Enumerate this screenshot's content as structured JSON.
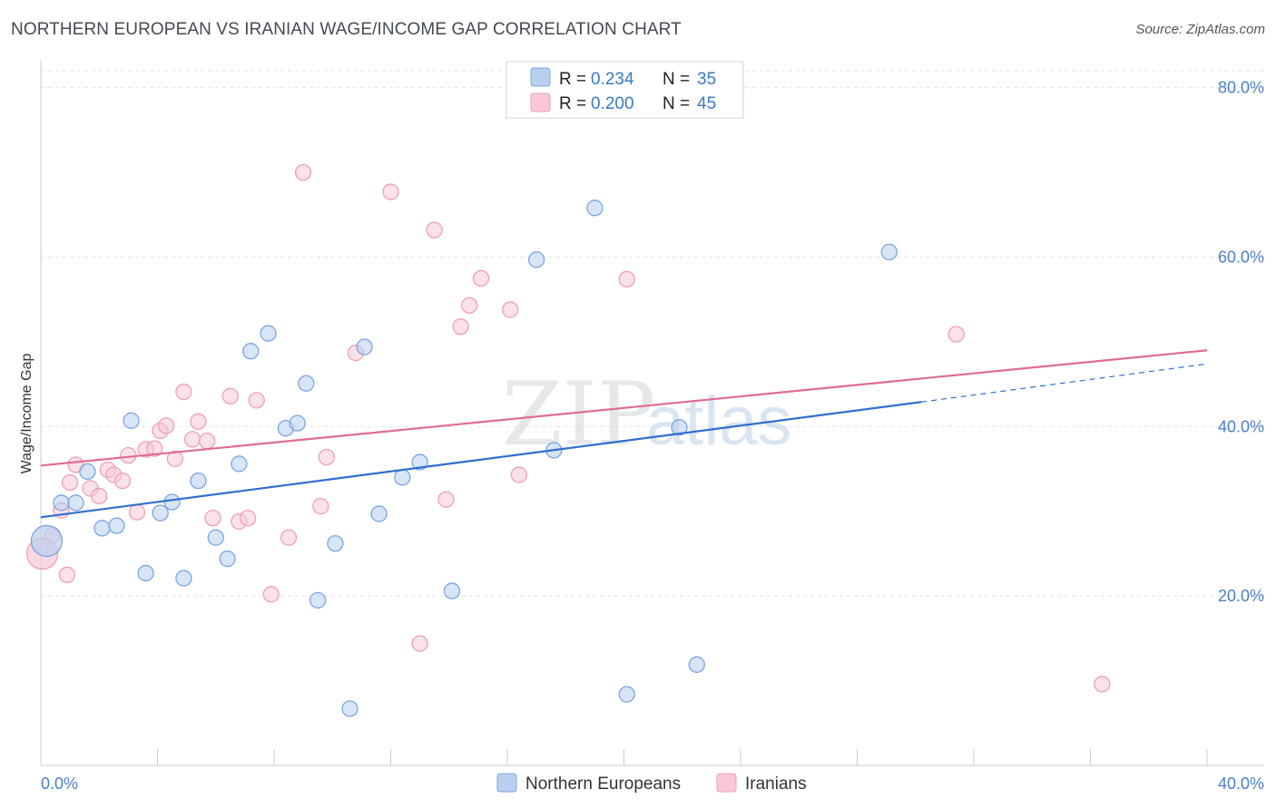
{
  "title": "NORTHERN EUROPEAN VS IRANIAN WAGE/INCOME GAP CORRELATION CHART",
  "source": "Source: ZipAtlas.com",
  "watermark": {
    "zip": "ZIP",
    "atlas": "atlas"
  },
  "legend_stats": [
    {
      "r_label": "R =",
      "r_value": "0.234",
      "n_label": "N =",
      "n_value": "35"
    },
    {
      "r_label": "R =",
      "r_value": "0.200",
      "n_label": "N =",
      "n_value": "45"
    }
  ],
  "chart_data": {
    "type": "scatter",
    "title": "NORTHERN EUROPEAN VS IRANIAN WAGE/INCOME GAP CORRELATION CHART",
    "xlabel": "",
    "ylabel": "Wage/Income Gap",
    "xlim": [
      0,
      40
    ],
    "ylim": [
      0,
      82
    ],
    "x_ticks": [
      {
        "value": 0,
        "label": "0.0%"
      },
      {
        "value": 40,
        "label": "40.0%"
      }
    ],
    "y_ticks": [
      {
        "value": 20,
        "label": "20.0%"
      },
      {
        "value": 40,
        "label": "40.0%"
      },
      {
        "value": 60,
        "label": "60.0%"
      },
      {
        "value": 80,
        "label": "80.0%"
      }
    ],
    "grid": true,
    "legend_position": "bottom-center",
    "series": [
      {
        "name": "Northern Europeans",
        "color": "#7aa6e0",
        "fill": "#b8d0f0",
        "trend_color": "#2f6fce",
        "trend": {
          "x0": 0,
          "y0": 29.3,
          "x1": 30.2,
          "y1": 42.9,
          "dash_x1": 40,
          "dash_y1": 47.4
        },
        "points": [
          {
            "x": 0.2,
            "y": 26.5,
            "big": true
          },
          {
            "x": 0.7,
            "y": 31.0
          },
          {
            "x": 1.2,
            "y": 31.0
          },
          {
            "x": 1.6,
            "y": 34.7
          },
          {
            "x": 2.1,
            "y": 28.0
          },
          {
            "x": 2.6,
            "y": 28.3
          },
          {
            "x": 3.1,
            "y": 40.7
          },
          {
            "x": 3.6,
            "y": 22.7
          },
          {
            "x": 4.1,
            "y": 29.8
          },
          {
            "x": 4.5,
            "y": 31.1
          },
          {
            "x": 4.9,
            "y": 22.1
          },
          {
            "x": 5.4,
            "y": 33.6
          },
          {
            "x": 6.0,
            "y": 26.9
          },
          {
            "x": 6.4,
            "y": 24.4
          },
          {
            "x": 6.8,
            "y": 35.6
          },
          {
            "x": 7.2,
            "y": 48.9
          },
          {
            "x": 7.8,
            "y": 51.0
          },
          {
            "x": 8.4,
            "y": 39.8
          },
          {
            "x": 8.8,
            "y": 40.4
          },
          {
            "x": 9.1,
            "y": 45.1
          },
          {
            "x": 9.5,
            "y": 19.5
          },
          {
            "x": 10.1,
            "y": 26.2
          },
          {
            "x": 10.6,
            "y": 6.7
          },
          {
            "x": 11.1,
            "y": 49.4
          },
          {
            "x": 11.6,
            "y": 29.7
          },
          {
            "x": 12.4,
            "y": 34.0
          },
          {
            "x": 13.0,
            "y": 35.8
          },
          {
            "x": 14.1,
            "y": 20.6
          },
          {
            "x": 17.0,
            "y": 59.7
          },
          {
            "x": 17.6,
            "y": 37.2
          },
          {
            "x": 19.0,
            "y": 65.8
          },
          {
            "x": 20.1,
            "y": 8.4
          },
          {
            "x": 21.9,
            "y": 39.9
          },
          {
            "x": 22.5,
            "y": 11.9
          },
          {
            "x": 29.1,
            "y": 60.6
          }
        ]
      },
      {
        "name": "Iranians",
        "color": "#ee9fb6",
        "fill": "#f8c8d6",
        "trend_color": "#e06c92",
        "trend": {
          "x0": 0,
          "y0": 35.4,
          "x1": 40,
          "y1": 49.0
        },
        "points": [
          {
            "x": 0.05,
            "y": 25.0,
            "big": true
          },
          {
            "x": 0.4,
            "y": 27.2
          },
          {
            "x": 0.7,
            "y": 30.1
          },
          {
            "x": 0.9,
            "y": 22.5
          },
          {
            "x": 1.0,
            "y": 33.4
          },
          {
            "x": 1.2,
            "y": 35.5
          },
          {
            "x": 1.7,
            "y": 32.7
          },
          {
            "x": 2.0,
            "y": 31.8
          },
          {
            "x": 2.3,
            "y": 34.9
          },
          {
            "x": 2.5,
            "y": 34.3
          },
          {
            "x": 2.8,
            "y": 33.6
          },
          {
            "x": 3.0,
            "y": 36.6
          },
          {
            "x": 3.3,
            "y": 29.9
          },
          {
            "x": 3.6,
            "y": 37.3
          },
          {
            "x": 3.9,
            "y": 37.4
          },
          {
            "x": 4.1,
            "y": 39.5
          },
          {
            "x": 4.3,
            "y": 40.1
          },
          {
            "x": 4.6,
            "y": 36.2
          },
          {
            "x": 4.9,
            "y": 44.1
          },
          {
            "x": 5.2,
            "y": 38.5
          },
          {
            "x": 5.4,
            "y": 40.6
          },
          {
            "x": 5.7,
            "y": 38.3
          },
          {
            "x": 5.9,
            "y": 29.2
          },
          {
            "x": 6.5,
            "y": 43.6
          },
          {
            "x": 6.8,
            "y": 28.8
          },
          {
            "x": 7.1,
            "y": 29.2
          },
          {
            "x": 7.4,
            "y": 43.1
          },
          {
            "x": 7.9,
            "y": 20.2
          },
          {
            "x": 8.5,
            "y": 26.9
          },
          {
            "x": 9.0,
            "y": 70.0
          },
          {
            "x": 9.6,
            "y": 30.6
          },
          {
            "x": 9.8,
            "y": 36.4
          },
          {
            "x": 10.8,
            "y": 48.7
          },
          {
            "x": 12.0,
            "y": 67.7
          },
          {
            "x": 13.0,
            "y": 14.4
          },
          {
            "x": 13.5,
            "y": 63.2
          },
          {
            "x": 13.9,
            "y": 31.4
          },
          {
            "x": 14.4,
            "y": 51.8
          },
          {
            "x": 14.7,
            "y": 54.3
          },
          {
            "x": 15.1,
            "y": 57.5
          },
          {
            "x": 16.1,
            "y": 53.8
          },
          {
            "x": 16.4,
            "y": 34.3
          },
          {
            "x": 20.1,
            "y": 57.4
          },
          {
            "x": 31.4,
            "y": 50.9
          },
          {
            "x": 36.4,
            "y": 9.6
          }
        ]
      }
    ]
  }
}
